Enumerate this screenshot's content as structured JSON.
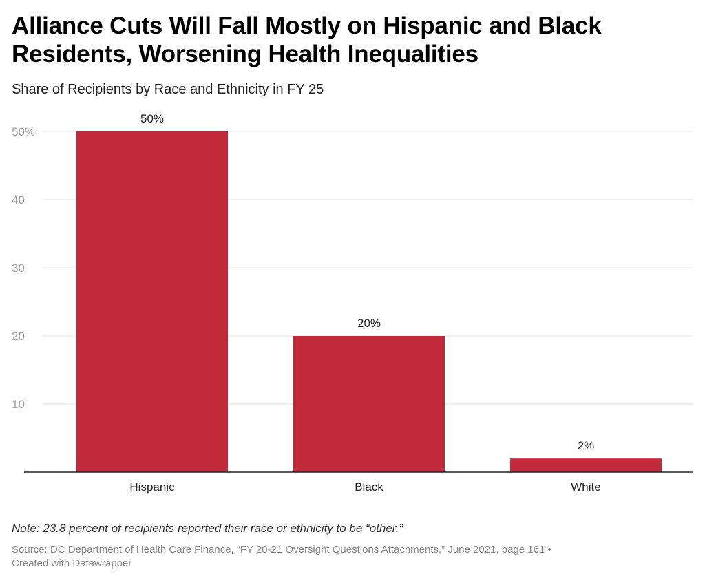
{
  "header": {
    "title": "Alliance Cuts Will Fall Mostly on Hispanic and Black Residents, Worsening Health Inequalities",
    "subtitle": "Share of Recipients by Race and Ethnicity in FY 25"
  },
  "footer": {
    "note": "Note: 23.8 percent of recipients reported their race or ethnicity to be “other.”",
    "source": "Source: DC Department of Health Care Finance, “FY 20-21 Oversight Questions Attachments,” June 2021, page 161 •",
    "credit": "Created with Datawrapper"
  },
  "colors": {
    "bar": "#c22a3a",
    "grid": "#e3e3e3",
    "axis": "#222222"
  },
  "chart_data": {
    "type": "bar",
    "title": "Alliance Cuts Will Fall Mostly on Hispanic and Black Residents, Worsening Health Inequalities",
    "subtitle": "Share of Recipients by Race and Ethnicity in FY 25",
    "categories": [
      "Hispanic",
      "Black",
      "White"
    ],
    "values": [
      50,
      20,
      2
    ],
    "value_labels": [
      "50%",
      "20%",
      "2%"
    ],
    "xlabel": "",
    "ylabel": "",
    "ylim": [
      0,
      50
    ],
    "yticks": [
      10,
      20,
      30,
      40,
      50
    ],
    "ytick_labels": [
      "10",
      "20",
      "30",
      "40",
      "50%"
    ],
    "grid": true,
    "legend": "none"
  }
}
